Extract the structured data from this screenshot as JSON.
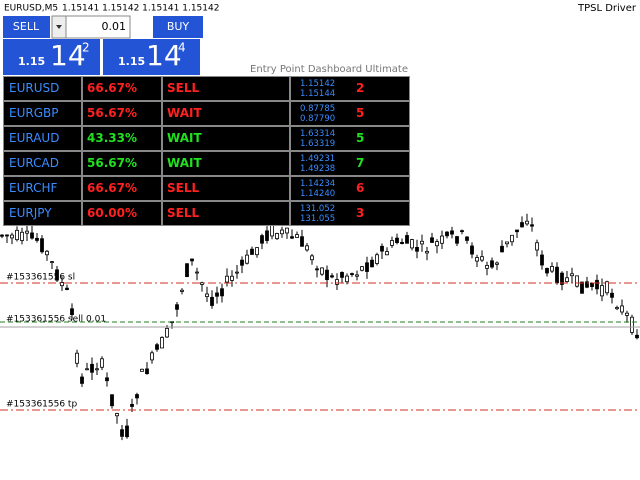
{
  "header": {
    "symbol": "EURUSD,M5",
    "prices": "1.15141 1.15142 1.15141 1.15142",
    "indicator": "TPSL Driver"
  },
  "trade_panel": {
    "sell": "SELL",
    "buy": "BUY",
    "lot": "0.01",
    "sell_price": {
      "prefix": "1.15",
      "big": "14",
      "small": "2"
    },
    "buy_price": {
      "prefix": "1.15",
      "big": "14",
      "small": "4"
    }
  },
  "dashboard": {
    "title": "Entry Point Dashboard Ultimate",
    "rows": [
      {
        "symbol": "EURUSD",
        "percent": "66.67%",
        "signal": "SELL",
        "bid": "1.15142",
        "ask": "1.15144",
        "count": "2",
        "color": "#ff2020"
      },
      {
        "symbol": "EURGBP",
        "percent": "56.67%",
        "signal": "WAIT",
        "bid": "0.87785",
        "ask": "0.87790",
        "count": "5",
        "color": "#ff2020"
      },
      {
        "symbol": "EURAUD",
        "percent": "43.33%",
        "signal": "WAIT",
        "bid": "1.63314",
        "ask": "1.63319",
        "count": "5",
        "color": "#20e020"
      },
      {
        "symbol": "EURCAD",
        "percent": "56.67%",
        "signal": "WAIT",
        "bid": "1.49231",
        "ask": "1.49238",
        "count": "7",
        "color": "#20e020"
      },
      {
        "symbol": "EURCHF",
        "percent": "66.67%",
        "signal": "SELL",
        "bid": "1.14234",
        "ask": "1.14240",
        "count": "6",
        "color": "#ff2020"
      },
      {
        "symbol": "EURJPY",
        "percent": "60.00%",
        "signal": "SELL",
        "bid": "131.052",
        "ask": "131.055",
        "count": "3",
        "color": "#ff2020"
      }
    ]
  },
  "order_lines": {
    "sl": "#153361556 sl",
    "sell": "#153361556 sell 0.01",
    "tp": "#153361556 tp"
  }
}
